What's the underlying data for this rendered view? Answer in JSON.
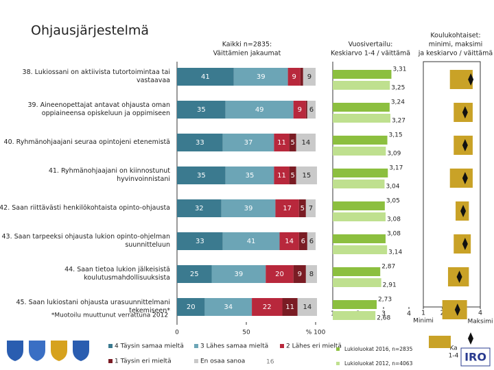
{
  "title": "Ohjausjärjestelmä",
  "footnote": "*Muotoilu muuttunut verrattuna 2012",
  "page_number": "16",
  "logo_text": "IRO",
  "chart_data": [
    {
      "type": "stacked_bar",
      "orientation": "horizontal",
      "title": [
        "Kaikki n=2835:",
        "Väittämien jakaumat"
      ],
      "categories": [
        "38. Lukiossani on aktiivista tutortoimintaa tai vastaavaa",
        "39. Aineenopettajat antavat ohjausta oman oppiaineensa opiskeluun ja oppimiseen",
        "40. Ryhmänohjaajani seuraa opintojeni etenemistä",
        "41. Ryhmänohjaajani on kiinnostunut hyvinvoinnistani",
        "42. Saan riittävästi henkilökohtaista opinto-ohjausta",
        "43. Saan tarpeeksi ohjausta lukion opinto-ohjelman suunnitteluun",
        "44. Saan tietoa lukion jälkeisistä koulutusmahdollisuuksista",
        "45. Saan lukiostani ohjausta urasuunnittelmani tekemiseen*"
      ],
      "series": [
        {
          "name": "4 Täysin samaa mieltä",
          "color": "#3b7a8f",
          "values": [
            41,
            35,
            33,
            35,
            32,
            33,
            25,
            20
          ]
        },
        {
          "name": "3 Lähes samaa mieltä",
          "color": "#6ca5b6",
          "values": [
            39,
            49,
            37,
            35,
            39,
            41,
            39,
            34
          ]
        },
        {
          "name": "2 Lähes eri mieltä",
          "color": "#b8283c",
          "values": [
            9,
            9,
            11,
            11,
            17,
            14,
            20,
            22
          ]
        },
        {
          "name": "1 Täysin eri mieltä",
          "color": "#7a1c24",
          "values": [
            2,
            1,
            5,
            5,
            5,
            6,
            9,
            11
          ]
        },
        {
          "name": "En osaa sanoa",
          "color": "#c9c9c9",
          "values": [
            9,
            6,
            14,
            15,
            7,
            6,
            8,
            14
          ]
        }
      ],
      "xlim": [
        0,
        100
      ],
      "xticks": [
        0,
        50,
        {
          "value": 100,
          "label": "% 100"
        }
      ]
    },
    {
      "type": "bar",
      "orientation": "horizontal",
      "title": [
        "Vuosivertailu:",
        "Keskiarvo 1-4 / väittämä"
      ],
      "series": [
        {
          "name": "Lukioluokat 2016, n=2835",
          "color": "#8cbf3f",
          "values": [
            3.31,
            3.24,
            3.15,
            3.17,
            3.05,
            3.08,
            2.87,
            2.73
          ],
          "value_labels": [
            "3,31",
            "3,24",
            "3,15",
            "3,17",
            "3,05",
            "3,08",
            "2,87",
            "2,73"
          ]
        },
        {
          "name": "Lukioluokat 2012, n=4063",
          "color": "#bfe08f",
          "values": [
            3.25,
            3.27,
            3.09,
            3.04,
            3.08,
            3.14,
            2.91,
            2.68
          ],
          "value_labels": [
            "3,25",
            "3,27",
            "3,09",
            "3,04",
            "3,08",
            "3,14",
            "2,91",
            "2,68"
          ]
        }
      ],
      "xlim": [
        1,
        4
      ],
      "xticks": [
        1,
        2,
        3,
        4
      ]
    },
    {
      "type": "range",
      "title": [
        "Koulukohtaiset:",
        "minimi, maksimi",
        "ja keskiarvo / väittämä"
      ],
      "min": [
        2.4,
        2.6,
        2.6,
        2.4,
        2.7,
        2.6,
        2.3,
        2.0
      ],
      "max": [
        3.6,
        3.6,
        3.6,
        3.6,
        3.4,
        3.5,
        3.4,
        3.3
      ],
      "mean": [
        3.5,
        3.2,
        3.2,
        3.2,
        3.1,
        3.2,
        2.9,
        2.8
      ],
      "bar_color": "#c9a227",
      "marker_color": "#111111",
      "xlim": [
        1,
        4
      ],
      "xticks": [
        1,
        2,
        3,
        4
      ],
      "min_label": "Minimi",
      "max_label": "Maksimi",
      "mean_label": [
        "Ka",
        "1-4"
      ]
    }
  ]
}
